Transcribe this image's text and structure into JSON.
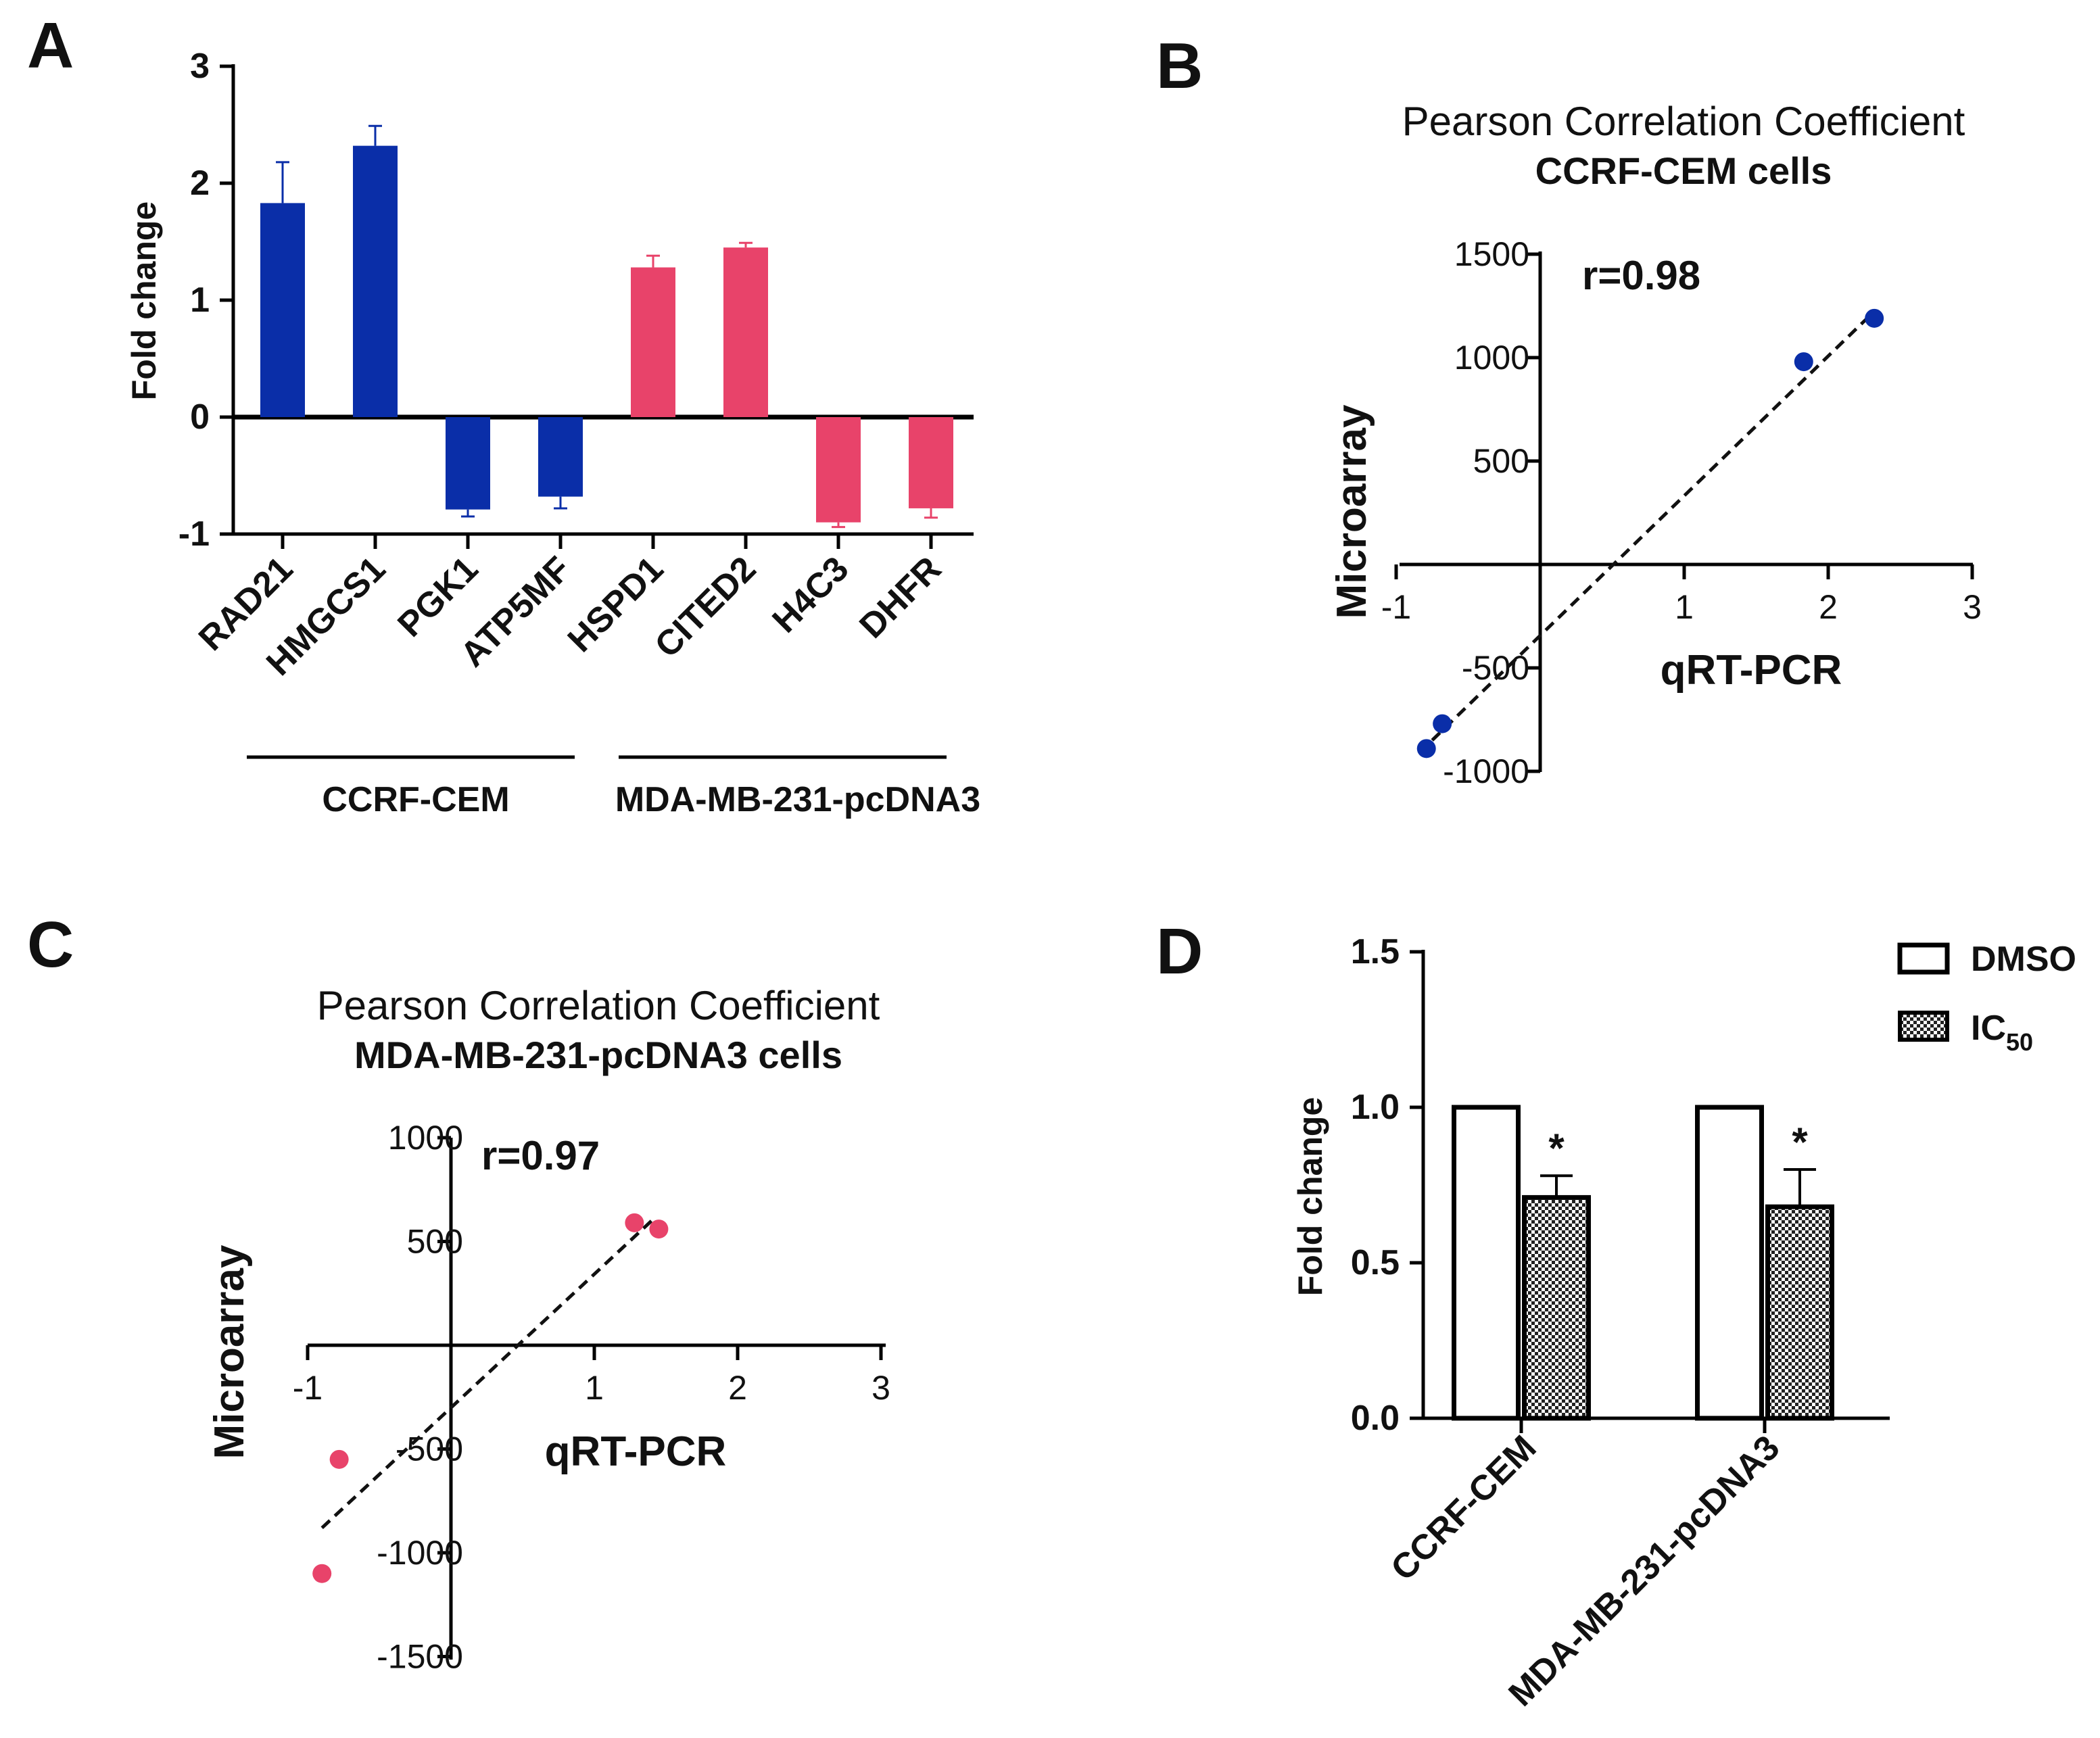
{
  "panel_letters": {
    "a": "A",
    "b": "B",
    "c": "C",
    "d": "D"
  },
  "chart_data": [
    {
      "panel": "A",
      "type": "bar",
      "ylabel": "Fold change",
      "ylim": [
        -1,
        3
      ],
      "yticks": [
        "3",
        "2",
        "1",
        "0",
        "-1"
      ],
      "categories": [
        "RAD21",
        "HMGCS1",
        "PGK1",
        "ATP5MF",
        "HSPD1",
        "CITED2",
        "H4C3",
        "DHFR"
      ],
      "values": [
        1.83,
        2.32,
        -0.79,
        -0.68,
        1.28,
        1.45,
        -0.9,
        -0.78
      ],
      "errors": [
        0.35,
        0.17,
        0.06,
        0.1,
        0.1,
        0.04,
        0.04,
        0.08
      ],
      "groups": [
        {
          "name": "CCRF-CEM",
          "color": "#0a2ea8"
        },
        {
          "name": "MDA-MB-231-pcDNA3",
          "color": "#e8436a"
        }
      ]
    },
    {
      "panel": "B",
      "type": "scatter",
      "title": "Pearson Correlation Coefficient",
      "subtitle": "CCRF-CEM cells",
      "xlabel": "qRT-PCR",
      "ylabel": "Microarray",
      "xlim": [
        -1,
        3
      ],
      "ylim": [
        -1000,
        1500
      ],
      "xticks": [
        "-1",
        "1",
        "2",
        "3"
      ],
      "yticks": [
        "1500",
        "1000",
        "500",
        "-500",
        "-1000"
      ],
      "annotation": "r=0.98",
      "color": "#0a2ea8",
      "x": [
        -0.79,
        -0.68,
        1.83,
        2.32
      ],
      "y": [
        -890,
        -770,
        980,
        1190
      ],
      "fit": {
        "x": [
          -0.75,
          2.3
        ],
        "y": [
          -850,
          1210
        ]
      }
    },
    {
      "panel": "C",
      "type": "scatter",
      "title": "Pearson Correlation Coefficient",
      "subtitle": "MDA-MB-231-pcDNA3 cells",
      "xlabel": "qRT-PCR",
      "ylabel": "Microarray",
      "xlim": [
        -1,
        3
      ],
      "ylim": [
        -1500,
        1000
      ],
      "xticks": [
        "-1",
        "1",
        "2",
        "3"
      ],
      "yticks": [
        "1000",
        "500",
        "-500",
        "-1000",
        "-1500"
      ],
      "annotation": "r=0.97",
      "color": "#e8436a",
      "x": [
        -0.9,
        -0.78,
        1.28,
        1.45
      ],
      "y": [
        -1100,
        -550,
        590,
        560
      ],
      "fit": {
        "x": [
          -0.9,
          1.4
        ],
        "y": [
          -880,
          600
        ]
      }
    },
    {
      "panel": "D",
      "type": "bar",
      "ylabel": "Fold change",
      "ylim": [
        0,
        1.5
      ],
      "yticks": [
        "1.5",
        "1.0",
        "0.5",
        "0.0"
      ],
      "categories": [
        "CCRF-CEM",
        "MDA-MB-231-pcDNA3"
      ],
      "series": [
        {
          "name": "DMSO",
          "values": [
            1.0,
            1.0
          ],
          "errors": [
            0,
            0
          ]
        },
        {
          "name": "IC",
          "subscript": "50",
          "values": [
            0.71,
            0.68
          ],
          "errors": [
            0.07,
            0.12
          ]
        }
      ],
      "significance": [
        "*",
        "*"
      ]
    }
  ]
}
